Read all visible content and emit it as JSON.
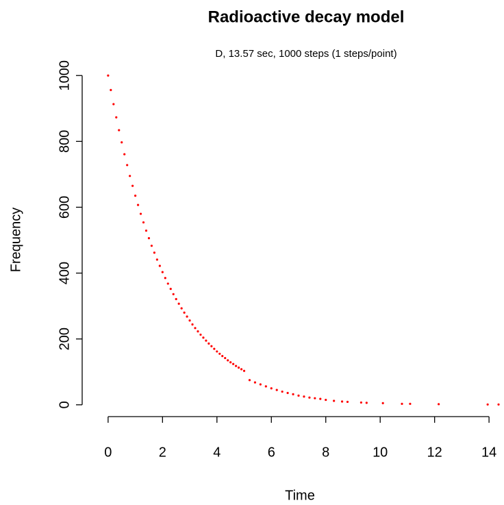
{
  "chart_data": {
    "type": "scatter",
    "title": "Radioactive decay model",
    "subtitle": "D, 13.57 sec, 1000 steps (1 steps/point)",
    "x_label": "Time",
    "y_label": "Frequency",
    "color": "#ff0000",
    "xlim": [
      -0.5,
      14.5
    ],
    "ylim": [
      -40,
      1040
    ],
    "xticks": [
      0,
      2,
      4,
      6,
      8,
      10,
      12,
      14
    ],
    "yticks": [
      0,
      200,
      400,
      600,
      800,
      1000
    ],
    "grid": false,
    "x": [
      0,
      0.1,
      0.2,
      0.3,
      0.4,
      0.5,
      0.6,
      0.7,
      0.8,
      0.9,
      1.0,
      1.1,
      1.2,
      1.3,
      1.4,
      1.5,
      1.6,
      1.7,
      1.8,
      1.9,
      2.0,
      2.1,
      2.2,
      2.3,
      2.4,
      2.5,
      2.6,
      2.7,
      2.8,
      2.9,
      3.0,
      3.1,
      3.2,
      3.3,
      3.4,
      3.5,
      3.6,
      3.7,
      3.8,
      3.9,
      4.0,
      4.1,
      4.2,
      4.3,
      4.4,
      4.5,
      4.6,
      4.7,
      4.8,
      4.9,
      5.0,
      5.2,
      5.4,
      5.6,
      5.8,
      6.0,
      6.2,
      6.4,
      6.6,
      6.8,
      7.0,
      7.2,
      7.4,
      7.6,
      7.8,
      8.0,
      8.3,
      8.6,
      8.8,
      9.3,
      9.5,
      10.1,
      10.8,
      11.1,
      12.15,
      13.95,
      14.35
    ],
    "y": [
      1000,
      956,
      913,
      873,
      834,
      797,
      761,
      728,
      695,
      665,
      635,
      607,
      580,
      554,
      529,
      506,
      483,
      462,
      441,
      422,
      403,
      385,
      368,
      352,
      336,
      321,
      307,
      293,
      280,
      268,
      256,
      244,
      233,
      223,
      213,
      204,
      195,
      186,
      178,
      170,
      162,
      155,
      148,
      142,
      135,
      129,
      124,
      118,
      113,
      108,
      103,
      75,
      68,
      62,
      56,
      50,
      45,
      40,
      36,
      32,
      28,
      25,
      22,
      20,
      18,
      15,
      12,
      10,
      9,
      7,
      6,
      5,
      3,
      3,
      2,
      1,
      1
    ]
  }
}
